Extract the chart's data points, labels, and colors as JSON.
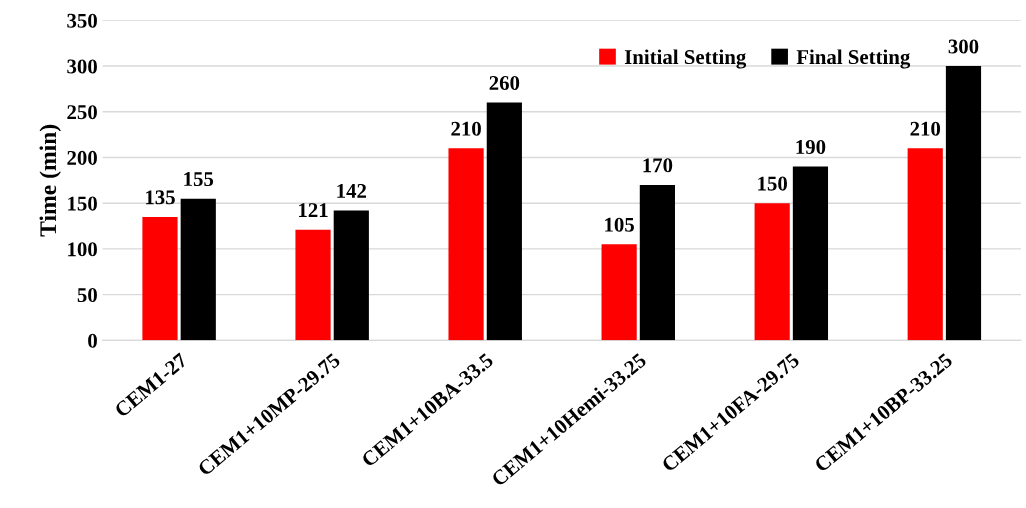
{
  "chart_data": {
    "type": "bar",
    "ylabel": "Time (min)",
    "categories": [
      "CEM1-27",
      "CEM1+10MP-29.75",
      "CEM1+10BA-33.5",
      "CEM1+10Hemi-33.25",
      "CEM1+10FA-29.75",
      "CEM1+10BP-33.25"
    ],
    "series": [
      {
        "name": "Initial Setting",
        "color": "#ff0000",
        "values": [
          135,
          121,
          210,
          105,
          150,
          210
        ]
      },
      {
        "name": "Final Setting",
        "color": "#000000",
        "values": [
          155,
          142,
          260,
          170,
          190,
          300
        ]
      }
    ],
    "ylim": [
      0,
      350
    ],
    "yticks": [
      0,
      50,
      100,
      150,
      200,
      250,
      300,
      350
    ],
    "grid": "y",
    "legend": "top right",
    "data_labels": true
  }
}
